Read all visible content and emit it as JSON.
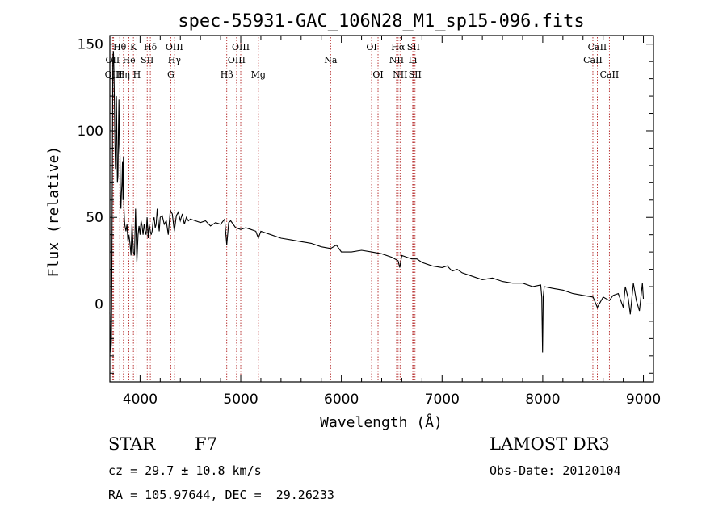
{
  "chart_data": {
    "type": "line",
    "title": "spec-55931-GAC_106N28_M1_sp15-096.fits",
    "xlabel": "Wavelength (Å)",
    "ylabel": "Flux (relative)",
    "xlim": [
      3700,
      9100
    ],
    "ylim": [
      -45,
      155
    ],
    "xticks": [
      4000,
      5000,
      6000,
      7000,
      8000,
      9000
    ],
    "yticks": [
      0,
      50,
      100,
      150
    ],
    "spectrum": {
      "name": "flux",
      "x": [
        3700,
        3705,
        3710,
        3715,
        3720,
        3725,
        3730,
        3735,
        3740,
        3745,
        3750,
        3755,
        3760,
        3765,
        3770,
        3775,
        3780,
        3785,
        3790,
        3795,
        3800,
        3805,
        3810,
        3815,
        3820,
        3825,
        3830,
        3835,
        3840,
        3845,
        3850,
        3860,
        3870,
        3880,
        3889,
        3900,
        3910,
        3920,
        3934,
        3945,
        3955,
        3968,
        3980,
        3990,
        4000,
        4010,
        4020,
        4030,
        4040,
        4050,
        4060,
        4070,
        4080,
        4090,
        4102,
        4110,
        4120,
        4130,
        4140,
        4150,
        4160,
        4170,
        4180,
        4190,
        4200,
        4220,
        4240,
        4260,
        4280,
        4300,
        4320,
        4340,
        4360,
        4380,
        4400,
        4420,
        4440,
        4460,
        4480,
        4500,
        4550,
        4600,
        4650,
        4700,
        4750,
        4800,
        4840,
        4861,
        4880,
        4900,
        4950,
        5000,
        5050,
        5100,
        5150,
        5175,
        5200,
        5300,
        5400,
        5500,
        5600,
        5700,
        5800,
        5893,
        5950,
        6000,
        6100,
        6200,
        6300,
        6400,
        6500,
        6563,
        6580,
        6600,
        6650,
        6700,
        6750,
        6800,
        6900,
        7000,
        7050,
        7100,
        7150,
        7200,
        7300,
        7400,
        7500,
        7600,
        7700,
        7800,
        7900,
        7980,
        7990,
        7998,
        8005,
        8015,
        8100,
        8200,
        8300,
        8400,
        8500,
        8542,
        8600,
        8662,
        8700,
        8750,
        8800,
        8820,
        8850,
        8870,
        8900,
        8930,
        8960,
        8990,
        9000
      ],
      "y": [
        -5,
        -20,
        -28,
        -22,
        20,
        80,
        142,
        146,
        135,
        118,
        95,
        78,
        90,
        120,
        96,
        70,
        74,
        100,
        118,
        92,
        86,
        60,
        55,
        64,
        70,
        82,
        60,
        85,
        56,
        48,
        45,
        42,
        46,
        36,
        40,
        35,
        28,
        46,
        30,
        28,
        55,
        24,
        40,
        45,
        40,
        48,
        45,
        40,
        46,
        42,
        40,
        50,
        38,
        46,
        42,
        40,
        42,
        48,
        50,
        44,
        46,
        55,
        48,
        42,
        50,
        51,
        46,
        48,
        40,
        54,
        52,
        42,
        51,
        53,
        48,
        52,
        46,
        50,
        48,
        49,
        48,
        47,
        48,
        45,
        47,
        46,
        49,
        34,
        47,
        48,
        44,
        43,
        44,
        43,
        42,
        38,
        42,
        40,
        38,
        37,
        36,
        35,
        33,
        32,
        34,
        30,
        30,
        31,
        30,
        29,
        27,
        25,
        21,
        28,
        27,
        26,
        26,
        24,
        22,
        21,
        22,
        19,
        20,
        18,
        16,
        14,
        15,
        13,
        12,
        12,
        10,
        11,
        4,
        -28,
        4,
        10,
        9,
        8,
        6,
        5,
        4,
        -2,
        4,
        2,
        5,
        6,
        -2,
        10,
        3,
        -6,
        12,
        2,
        -4,
        12,
        3
      ]
    },
    "spectral_lines": [
      {
        "label": "Hθ",
        "x": 3798,
        "row": 1
      },
      {
        "label": "OII",
        "x": 3727,
        "row": 2
      },
      {
        "label": "OIII",
        "x": 3737,
        "row": 3
      },
      {
        "label": "Hη",
        "x": 3835,
        "row": 3
      },
      {
        "label": "He",
        "x": 3889,
        "row": 2
      },
      {
        "label": "K",
        "x": 3934,
        "row": 1
      },
      {
        "label": "H",
        "x": 3968,
        "row": 3
      },
      {
        "label": "SII",
        "x": 4071,
        "row": 2
      },
      {
        "label": "Hδ",
        "x": 4102,
        "row": 1
      },
      {
        "label": "OIII",
        "x": 4341,
        "row": 1
      },
      {
        "label": "Hγ",
        "x": 4341,
        "row": 2
      },
      {
        "label": "G",
        "x": 4305,
        "row": 3
      },
      {
        "label": "Hβ",
        "x": 4861,
        "row": 3
      },
      {
        "label": "OIII",
        "x": 5000,
        "row": 1
      },
      {
        "label": "OIII",
        "x": 4959,
        "row": 2
      },
      {
        "label": "Mg",
        "x": 5175,
        "row": 3
      },
      {
        "label": "Na",
        "x": 5893,
        "row": 2
      },
      {
        "label": "OI",
        "x": 6300,
        "row": 1
      },
      {
        "label": "OI",
        "x": 6364,
        "row": 3
      },
      {
        "label": "Hα",
        "x": 6563,
        "row": 1
      },
      {
        "label": "SII",
        "x": 6716,
        "row": 1
      },
      {
        "label": "NII",
        "x": 6548,
        "row": 2
      },
      {
        "label": "Li",
        "x": 6708,
        "row": 2
      },
      {
        "label": "NII",
        "x": 6583,
        "row": 3
      },
      {
        "label": "SII",
        "x": 6731,
        "row": 3
      },
      {
        "label": "CaII",
        "x": 8542,
        "row": 1
      },
      {
        "label": "CaII",
        "x": 8498,
        "row": 2
      },
      {
        "label": "CaII",
        "x": 8662,
        "row": 3
      }
    ]
  },
  "footer": {
    "object_class": "STAR",
    "subclass": "F7",
    "redshift_text": "cz = 29.7 ± 10.8 km/s",
    "coords_text": "RA = 105.97644, DEC =  29.26233",
    "survey": "LAMOST DR3",
    "obs_date": "Obs-Date: 20120104"
  }
}
